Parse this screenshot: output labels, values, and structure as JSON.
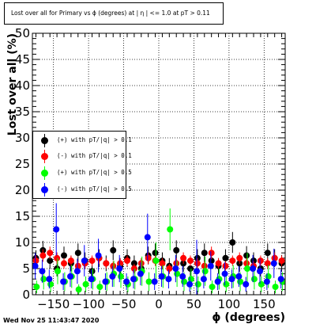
{
  "timestamp": "Wed Nov 25 11:43:47 2020",
  "chart_data": {
    "type": "scatter",
    "title": "Lost over all for Primary vs ϕ (degrees) at | η | <= 1.0 at pT > 0.11",
    "xlabel": "ϕ (degrees)",
    "ylabel": "Lost over all (%)",
    "xlim": [
      -180,
      180
    ],
    "ylim": [
      0,
      50
    ],
    "xticks": [
      -150,
      -100,
      -50,
      0,
      50,
      100,
      150
    ],
    "yticks": [
      0,
      5,
      10,
      15,
      20,
      25,
      30,
      35,
      40,
      45,
      50
    ],
    "grid": true,
    "legend_position": "middle-left",
    "series": [
      {
        "name": "(+) with pT/|q| > 0.1",
        "color": "#000000",
        "x": [
          -175,
          -165,
          -155,
          -145,
          -135,
          -125,
          -115,
          -105,
          -95,
          -85,
          -75,
          -65,
          -55,
          -45,
          -35,
          -25,
          -15,
          -5,
          5,
          15,
          25,
          35,
          45,
          55,
          65,
          75,
          85,
          95,
          105,
          115,
          125,
          135,
          145,
          155,
          165,
          175
        ],
        "y": [
          7.0,
          8.5,
          6.5,
          5.0,
          7.5,
          6.0,
          8.0,
          6.5,
          4.5,
          7.0,
          6.0,
          8.5,
          5.5,
          7.0,
          6.0,
          5.0,
          7.5,
          8.0,
          6.5,
          5.5,
          8.5,
          6.0,
          5.0,
          7.0,
          8.0,
          6.5,
          5.5,
          7.0,
          10.0,
          6.0,
          7.5,
          6.5,
          5.0,
          8.0,
          7.0,
          6.0
        ],
        "err": [
          1.5,
          1.8,
          1.6,
          1.5,
          1.7,
          1.5,
          1.8,
          1.6,
          1.4,
          1.7,
          1.5,
          1.9,
          1.5,
          1.7,
          1.5,
          1.4,
          1.7,
          1.8,
          1.6,
          1.5,
          1.9,
          1.6,
          1.4,
          1.7,
          1.8,
          1.6,
          1.5,
          1.7,
          2.0,
          1.6,
          1.8,
          1.6,
          1.5,
          1.8,
          1.7,
          1.6
        ]
      },
      {
        "name": "(-) with pT/|q| > 0.1",
        "color": "#ff0000",
        "x": [
          -175,
          -165,
          -155,
          -145,
          -135,
          -125,
          -115,
          -105,
          -95,
          -85,
          -75,
          -65,
          -55,
          -45,
          -35,
          -25,
          -15,
          -5,
          5,
          15,
          25,
          35,
          45,
          55,
          65,
          75,
          85,
          95,
          105,
          115,
          125,
          135,
          145,
          155,
          165,
          175
        ],
        "y": [
          6.5,
          7.5,
          8.0,
          7.0,
          6.0,
          6.5,
          5.5,
          6.0,
          6.5,
          7.0,
          6.0,
          5.5,
          6.0,
          6.5,
          5.0,
          6.0,
          7.0,
          6.5,
          6.0,
          5.0,
          6.0,
          7.0,
          6.5,
          6.0,
          5.5,
          8.0,
          6.0,
          5.5,
          6.5,
          7.0,
          6.0,
          5.5,
          6.5,
          6.0,
          7.0,
          6.5
        ],
        "err": [
          1.0,
          1.2,
          1.2,
          1.1,
          1.0,
          1.0,
          0.9,
          1.0,
          1.0,
          1.1,
          1.0,
          0.9,
          1.0,
          1.0,
          0.9,
          1.0,
          1.1,
          1.0,
          1.0,
          0.9,
          1.0,
          1.1,
          1.0,
          1.0,
          0.9,
          1.2,
          1.0,
          0.9,
          1.0,
          1.1,
          1.0,
          0.9,
          1.0,
          1.0,
          1.1,
          1.0
        ]
      },
      {
        "name": "(+) with pT/|q| > 0.5",
        "color": "#00ff00",
        "x": [
          -174,
          -164,
          -154,
          -144,
          -134,
          -124,
          -114,
          -104,
          -94,
          -84,
          -74,
          -64,
          -54,
          -44,
          -34,
          -24,
          -14,
          -4,
          6,
          16,
          26,
          36,
          46,
          56,
          66,
          76,
          86,
          96,
          106,
          116,
          126,
          136,
          146,
          156,
          166,
          176
        ],
        "y": [
          1.5,
          3.0,
          2.0,
          4.5,
          2.5,
          3.5,
          1.0,
          2.0,
          3.0,
          1.5,
          2.5,
          4.0,
          3.5,
          2.0,
          3.0,
          4.5,
          2.5,
          6.5,
          3.5,
          12.5,
          4.0,
          2.5,
          3.0,
          2.0,
          4.5,
          1.5,
          3.0,
          2.0,
          3.5,
          2.5,
          5.0,
          3.0,
          2.0,
          3.5,
          1.5,
          2.5
        ],
        "err": [
          1.2,
          2.0,
          1.5,
          2.5,
          1.8,
          2.2,
          1.0,
          1.5,
          2.0,
          1.2,
          1.8,
          2.5,
          2.2,
          1.5,
          2.0,
          2.8,
          1.8,
          3.5,
          2.2,
          4.0,
          2.5,
          1.8,
          2.0,
          1.5,
          2.8,
          1.2,
          2.0,
          1.5,
          2.2,
          1.8,
          3.0,
          2.0,
          1.5,
          2.2,
          1.2,
          1.8
        ]
      },
      {
        "name": "(-) with pT/|q| > 0.5",
        "color": "#0000ff",
        "x": [
          -176,
          -166,
          -156,
          -146,
          -136,
          -126,
          -116,
          -106,
          -96,
          -86,
          -76,
          -66,
          -56,
          -46,
          -36,
          -26,
          -16,
          -6,
          4,
          14,
          24,
          34,
          44,
          54,
          64,
          74,
          84,
          94,
          104,
          114,
          124,
          134,
          144,
          154,
          164,
          174
        ],
        "y": [
          5.5,
          4.5,
          3.0,
          12.5,
          2.5,
          3.5,
          4.5,
          6.5,
          3.0,
          7.5,
          2.5,
          3.5,
          5.0,
          2.5,
          3.0,
          4.0,
          11.0,
          2.5,
          3.5,
          3.0,
          5.0,
          3.5,
          2.0,
          4.5,
          3.0,
          5.5,
          2.5,
          4.0,
          3.0,
          3.5,
          2.0,
          5.0,
          4.5,
          2.5,
          6.0,
          3.0
        ],
        "err": [
          2.5,
          2.2,
          1.8,
          5.0,
          1.6,
          2.0,
          2.4,
          3.0,
          1.8,
          3.2,
          1.6,
          2.0,
          2.6,
          1.6,
          1.8,
          2.2,
          4.5,
          1.6,
          2.0,
          1.8,
          2.6,
          2.0,
          1.4,
          6.0,
          1.8,
          2.8,
          1.6,
          2.2,
          1.8,
          2.0,
          1.4,
          2.6,
          2.4,
          1.6,
          2.8,
          1.8
        ]
      }
    ]
  }
}
